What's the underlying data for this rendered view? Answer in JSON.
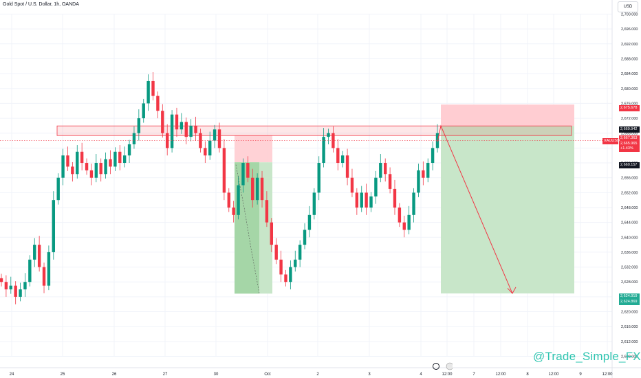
{
  "header": {
    "title": "Gold Spot / U.S. Dollar, 1h, OANDA",
    "currency_button": "USD"
  },
  "watermark": "@Trade_Simple_FX",
  "colors": {
    "up": "#089981",
    "down": "#f23645",
    "grid": "#f0f3fa",
    "zone": "#f23645",
    "stop": "#ffcdd2",
    "target": "#c8e6c9"
  },
  "price_badges": [
    {
      "label": "2,675.678",
      "color": "#f23645"
    },
    {
      "label": "2,669.942",
      "color": "#131722"
    },
    {
      "label": "2,667.363",
      "color": "#f23645"
    },
    {
      "label": "2,665.965",
      "color": "#f23645"
    },
    {
      "label": "+1.43%",
      "color": "#f23645"
    },
    {
      "label": "2,660.157",
      "color": "#131722"
    },
    {
      "label": "2,624.919",
      "color": "#22ab94"
    },
    {
      "label": "2,624.869",
      "color": "#22ab94"
    }
  ],
  "symbol_badge": "XAUUSD",
  "chart_data": {
    "type": "candlestick",
    "title": "Gold Spot / U.S. Dollar, 1h, OANDA",
    "y_ticks": [
      "2,700.000",
      "2,696.000",
      "2,692.000",
      "2,688.000",
      "2,684.000",
      "2,680.000",
      "2,676.000",
      "2,672.000",
      "2,668.000",
      "2,664.000",
      "2,660.000",
      "2,656.000",
      "2,652.000",
      "2,648.000",
      "2,644.000",
      "2,640.000",
      "2,636.000",
      "2,632.000",
      "2,628.000",
      "2,624.000",
      "2,620.000",
      "2,616.000",
      "2,612.000",
      "2,608.000"
    ],
    "y_range": [
      2606,
      2702
    ],
    "x_ticks": [
      "24",
      "25",
      "26",
      "27",
      "30",
      "Oct",
      "2",
      "3",
      "4",
      "12:00",
      "7",
      "12:00",
      "8",
      "12:00",
      "9",
      "12:00"
    ],
    "price_path": [
      [
        2629,
        2628
      ],
      [
        2628,
        2626
      ],
      [
        2626,
        2627
      ],
      [
        2627,
        2624
      ],
      [
        2624,
        2626
      ],
      [
        2626,
        2628
      ],
      [
        2628,
        2634
      ],
      [
        2634,
        2638
      ],
      [
        2638,
        2632
      ],
      [
        2632,
        2627
      ],
      [
        2627,
        2636
      ],
      [
        2636,
        2650
      ],
      [
        2650,
        2656
      ],
      [
        2656,
        2662
      ],
      [
        2662,
        2659
      ],
      [
        2659,
        2657
      ],
      [
        2657,
        2663
      ],
      [
        2663,
        2660
      ],
      [
        2660,
        2658
      ],
      [
        2658,
        2656
      ],
      [
        2656,
        2660
      ],
      [
        2660,
        2657
      ],
      [
        2657,
        2661
      ],
      [
        2661,
        2659
      ],
      [
        2659,
        2663
      ],
      [
        2663,
        2660
      ],
      [
        2660,
        2662
      ],
      [
        2662,
        2665
      ],
      [
        2665,
        2668
      ],
      [
        2668,
        2672
      ],
      [
        2672,
        2676
      ],
      [
        2676,
        2682
      ],
      [
        2682,
        2678
      ],
      [
        2678,
        2674
      ],
      [
        2674,
        2668
      ],
      [
        2668,
        2664
      ],
      [
        2664,
        2673
      ],
      [
        2673,
        2669
      ],
      [
        2669,
        2671
      ],
      [
        2671,
        2667
      ],
      [
        2667,
        2670
      ],
      [
        2670,
        2668
      ],
      [
        2668,
        2664
      ],
      [
        2664,
        2662
      ],
      [
        2662,
        2666
      ],
      [
        2666,
        2669
      ],
      [
        2669,
        2664
      ],
      [
        2664,
        2652
      ],
      [
        2652,
        2648
      ],
      [
        2648,
        2646
      ],
      [
        2646,
        2654
      ],
      [
        2654,
        2660
      ],
      [
        2660,
        2656
      ],
      [
        2656,
        2650
      ],
      [
        2650,
        2656
      ],
      [
        2656,
        2650
      ],
      [
        2650,
        2644
      ],
      [
        2644,
        2638
      ],
      [
        2638,
        2634
      ],
      [
        2634,
        2630
      ],
      [
        2630,
        2628
      ],
      [
        2628,
        2632
      ],
      [
        2632,
        2634
      ],
      [
        2634,
        2638
      ],
      [
        2638,
        2642
      ],
      [
        2642,
        2646
      ],
      [
        2646,
        2652
      ],
      [
        2652,
        2660
      ],
      [
        2660,
        2667
      ],
      [
        2667,
        2668
      ],
      [
        2668,
        2664
      ],
      [
        2664,
        2660
      ],
      [
        2660,
        2662
      ],
      [
        2662,
        2656
      ],
      [
        2656,
        2652
      ],
      [
        2652,
        2648
      ],
      [
        2648,
        2652
      ],
      [
        2652,
        2648
      ],
      [
        2648,
        2651
      ],
      [
        2651,
        2656
      ],
      [
        2656,
        2660
      ],
      [
        2660,
        2657
      ],
      [
        2657,
        2653
      ],
      [
        2653,
        2648
      ],
      [
        2648,
        2644
      ],
      [
        2644,
        2642
      ],
      [
        2642,
        2646
      ],
      [
        2646,
        2652
      ],
      [
        2652,
        2658
      ],
      [
        2658,
        2656
      ],
      [
        2656,
        2660
      ],
      [
        2660,
        2664
      ],
      [
        2664,
        2668
      ]
    ],
    "key_level_zone": {
      "high": 2669.942,
      "low": 2667.363
    },
    "short_position": {
      "entry": 2669.942,
      "stop": 2675.678,
      "target": 2624.919,
      "x_start": "4",
      "x_end": "12:00 (8)"
    },
    "past_position": {
      "entry": 2660.157,
      "stop": 2667.363,
      "target": 2624.869
    },
    "current_price": 2665.965,
    "grid": true
  }
}
